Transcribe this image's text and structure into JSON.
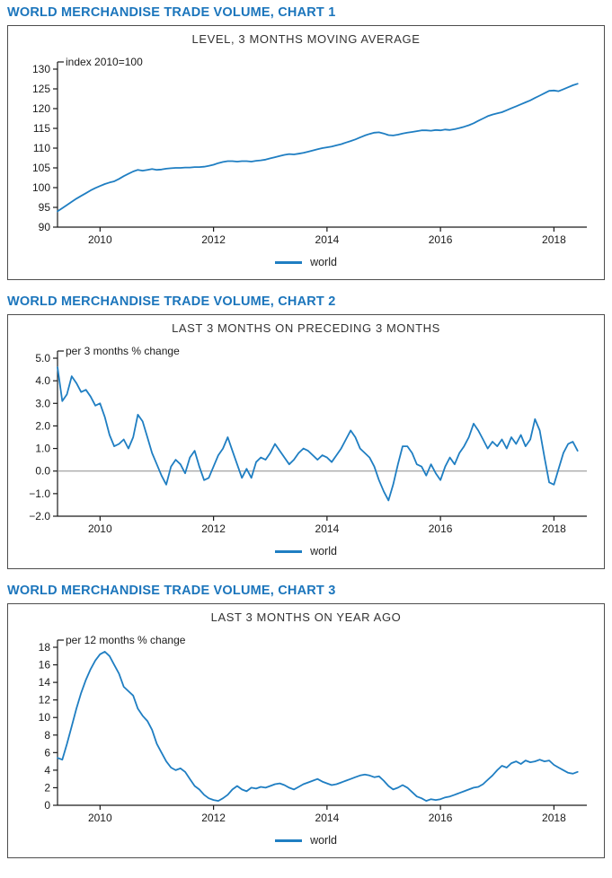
{
  "headings": [
    "WORLD MERCHANDISE TRADE VOLUME, CHART 1",
    "WORLD MERCHANDISE TRADE VOLUME, CHART 2",
    "WORLD MERCHANDISE TRADE VOLUME, CHART 3"
  ],
  "style": {
    "heading_color": "#1b75bc",
    "line_color": "#1f7ec2",
    "axis_color": "#1a1a1a",
    "zero_line_color": "#8c8c8c"
  },
  "chart_data": [
    {
      "type": "line",
      "title": "LEVEL, 3 MONTHS MOVING AVERAGE",
      "unit_label": "index 2010=100",
      "xlabel": "",
      "ylabel": "index 2010=100",
      "legend_position": "bottom",
      "grid": false,
      "zero_line": false,
      "xlim": [
        2009.25,
        2018.58
      ],
      "ylim": [
        90,
        130
      ],
      "ytick_values": [
        90,
        95,
        100,
        105,
        110,
        115,
        120,
        125,
        130
      ],
      "ytick_labels": [
        "90",
        "95",
        "100",
        "105",
        "110",
        "115",
        "120",
        "125",
        "130"
      ],
      "xtick_values": [
        2010,
        2012,
        2014,
        2016,
        2018
      ],
      "xtick_labels": [
        "2010",
        "2012",
        "2014",
        "2016",
        "2018"
      ],
      "x_start": 2009.25,
      "x_step": 0.0833333,
      "series": [
        {
          "name": "world",
          "values": [
            94.0,
            94.8,
            95.6,
            96.4,
            97.2,
            97.9,
            98.6,
            99.3,
            99.9,
            100.4,
            100.9,
            101.3,
            101.6,
            102.2,
            102.9,
            103.5,
            104.1,
            104.5,
            104.3,
            104.5,
            104.7,
            104.5,
            104.6,
            104.8,
            104.9,
            105.0,
            105.0,
            105.1,
            105.1,
            105.2,
            105.2,
            105.3,
            105.5,
            105.8,
            106.2,
            106.5,
            106.7,
            106.7,
            106.6,
            106.7,
            106.7,
            106.6,
            106.8,
            106.9,
            107.1,
            107.4,
            107.7,
            108.0,
            108.3,
            108.5,
            108.4,
            108.6,
            108.8,
            109.1,
            109.4,
            109.7,
            110.0,
            110.2,
            110.4,
            110.7,
            111.0,
            111.4,
            111.8,
            112.2,
            112.7,
            113.2,
            113.6,
            113.9,
            114.0,
            113.7,
            113.3,
            113.2,
            113.4,
            113.7,
            113.9,
            114.1,
            114.3,
            114.5,
            114.5,
            114.4,
            114.6,
            114.5,
            114.7,
            114.6,
            114.8,
            115.1,
            115.4,
            115.8,
            116.3,
            116.9,
            117.5,
            118.1,
            118.5,
            118.8,
            119.1,
            119.6,
            120.1,
            120.6,
            121.1,
            121.6,
            122.1,
            122.7,
            123.3,
            123.9,
            124.5,
            124.6,
            124.4,
            124.9,
            125.4,
            125.9,
            126.3
          ]
        }
      ]
    },
    {
      "type": "line",
      "title": "LAST 3 MONTHS ON PRECEDING 3 MONTHS",
      "unit_label": "per 3 months % change",
      "xlabel": "",
      "ylabel": "per 3 months % change",
      "legend_position": "bottom",
      "grid": false,
      "zero_line": true,
      "xlim": [
        2009.25,
        2018.58
      ],
      "ylim": [
        -2,
        5
      ],
      "ytick_values": [
        -2,
        -1,
        0,
        1,
        2,
        3,
        4,
        5
      ],
      "ytick_labels": [
        "−2.0",
        "−1.0",
        "0.0",
        "1.0",
        "2.0",
        "3.0",
        "4.0",
        "5.0"
      ],
      "xtick_values": [
        2010,
        2012,
        2014,
        2016,
        2018
      ],
      "xtick_labels": [
        "2010",
        "2012",
        "2014",
        "2016",
        "2018"
      ],
      "x_start": 2009.25,
      "x_step": 0.0833333,
      "series": [
        {
          "name": "world",
          "values": [
            4.6,
            3.1,
            3.4,
            4.2,
            3.9,
            3.5,
            3.6,
            3.3,
            2.9,
            3.0,
            2.4,
            1.6,
            1.1,
            1.2,
            1.4,
            1.0,
            1.5,
            2.5,
            2.2,
            1.5,
            0.8,
            0.3,
            -0.2,
            -0.6,
            0.2,
            0.5,
            0.3,
            -0.1,
            0.6,
            0.9,
            0.2,
            -0.4,
            -0.3,
            0.2,
            0.7,
            1.0,
            1.5,
            0.9,
            0.3,
            -0.3,
            0.1,
            -0.3,
            0.4,
            0.6,
            0.5,
            0.8,
            1.2,
            0.9,
            0.6,
            0.3,
            0.5,
            0.8,
            1.0,
            0.9,
            0.7,
            0.5,
            0.7,
            0.6,
            0.4,
            0.7,
            1.0,
            1.4,
            1.8,
            1.5,
            1.0,
            0.8,
            0.6,
            0.2,
            -0.4,
            -0.9,
            -1.3,
            -0.6,
            0.3,
            1.1,
            1.1,
            0.8,
            0.3,
            0.2,
            -0.2,
            0.3,
            -0.1,
            -0.4,
            0.2,
            0.6,
            0.3,
            0.8,
            1.1,
            1.5,
            2.1,
            1.8,
            1.4,
            1.0,
            1.3,
            1.1,
            1.4,
            1.0,
            1.5,
            1.2,
            1.6,
            1.1,
            1.4,
            2.3,
            1.8,
            0.6,
            -0.5,
            -0.6,
            0.1,
            0.8,
            1.2,
            1.3,
            0.9
          ]
        }
      ]
    },
    {
      "type": "line",
      "title": "LAST 3 MONTHS ON YEAR AGO",
      "unit_label": "per 12 months % change",
      "xlabel": "",
      "ylabel": "per 12 months % change",
      "legend_position": "bottom",
      "grid": false,
      "zero_line": false,
      "xlim": [
        2009.25,
        2018.58
      ],
      "ylim": [
        0,
        18
      ],
      "ytick_values": [
        0,
        2,
        4,
        6,
        8,
        10,
        12,
        14,
        16,
        18
      ],
      "ytick_labels": [
        "0",
        "2",
        "4",
        "6",
        "8",
        "10",
        "12",
        "14",
        "16",
        "18"
      ],
      "xtick_values": [
        2010,
        2012,
        2014,
        2016,
        2018
      ],
      "xtick_labels": [
        "2010",
        "2012",
        "2014",
        "2016",
        "2018"
      ],
      "x_start": 2009.25,
      "x_step": 0.0833333,
      "series": [
        {
          "name": "world",
          "values": [
            5.4,
            5.2,
            7.0,
            9.0,
            11.0,
            12.8,
            14.3,
            15.5,
            16.5,
            17.2,
            17.5,
            17.0,
            16.0,
            15.0,
            13.5,
            13.0,
            12.5,
            11.0,
            10.2,
            9.6,
            8.6,
            7.0,
            6.0,
            5.0,
            4.3,
            4.0,
            4.2,
            3.8,
            3.0,
            2.2,
            1.8,
            1.2,
            0.8,
            0.6,
            0.5,
            0.8,
            1.2,
            1.8,
            2.2,
            1.8,
            1.6,
            2.0,
            1.9,
            2.1,
            2.0,
            2.2,
            2.4,
            2.5,
            2.3,
            2.0,
            1.8,
            2.1,
            2.4,
            2.6,
            2.8,
            3.0,
            2.7,
            2.5,
            2.3,
            2.4,
            2.6,
            2.8,
            3.0,
            3.2,
            3.4,
            3.5,
            3.4,
            3.2,
            3.3,
            2.8,
            2.2,
            1.8,
            2.0,
            2.3,
            2.0,
            1.5,
            1.0,
            0.8,
            0.5,
            0.7,
            0.6,
            0.7,
            0.9,
            1.0,
            1.2,
            1.4,
            1.6,
            1.8,
            2.0,
            2.1,
            2.4,
            2.9,
            3.4,
            4.0,
            4.5,
            4.3,
            4.8,
            5.0,
            4.7,
            5.1,
            4.9,
            5.0,
            5.2,
            5.0,
            5.1,
            4.6,
            4.3,
            4.0,
            3.7,
            3.6,
            3.8
          ]
        }
      ]
    }
  ]
}
